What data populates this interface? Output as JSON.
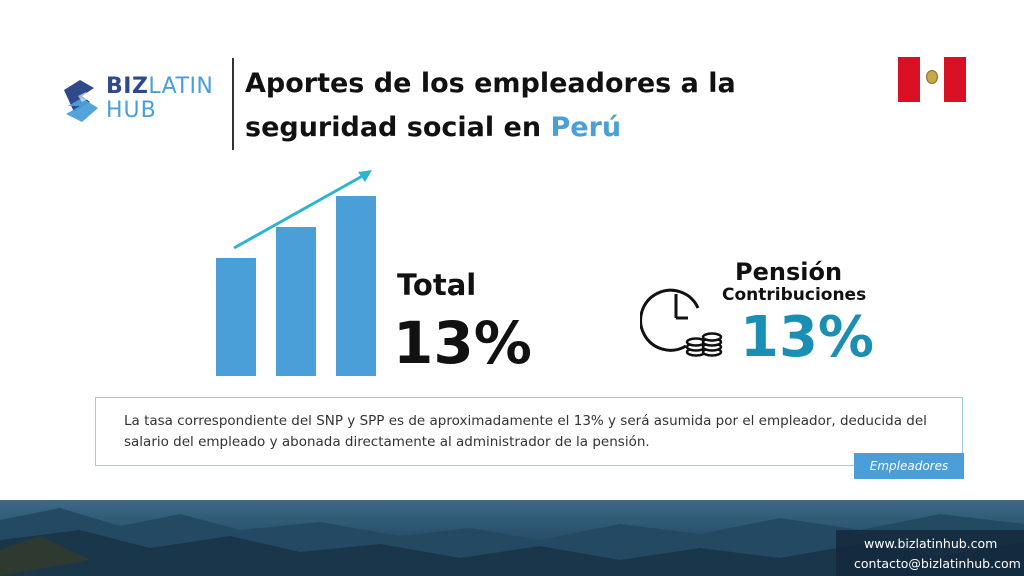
{
  "logo": {
    "biz": "BIZ",
    "latin": "LATIN",
    "hub": "HUB"
  },
  "header": {
    "title_line1": "Aportes de los empleadores a la",
    "title_line2_prefix": "seguridad social en ",
    "title_line2_accent": "Perú"
  },
  "total": {
    "label": "Total",
    "value": "13%"
  },
  "pension": {
    "title": "Pensión",
    "subtitle": "Contribuciones",
    "value": "13%"
  },
  "info": {
    "text": "La tasa correspondiente del SNP y SPP es de aproximadamente el 13% y será asumida por el empleador, deducida del salario del empleado y abonada directamente al administrador de la pensión.",
    "tag": "Empleadores"
  },
  "contact": {
    "website": "www.bizlatinhub.com",
    "email": "contacto@bizlatinhub.com"
  },
  "colors": {
    "accent": "#4a9fd8",
    "teal": "#1a8fb3",
    "navy": "#2f4a8a",
    "arrow": "#2bb5d0",
    "flag_red": "#d91023"
  },
  "icons": [
    "logo-mark-icon",
    "trend-bars-icon",
    "trend-arrow-icon",
    "clock-icon",
    "coins-icon",
    "flag-peru-icon"
  ]
}
